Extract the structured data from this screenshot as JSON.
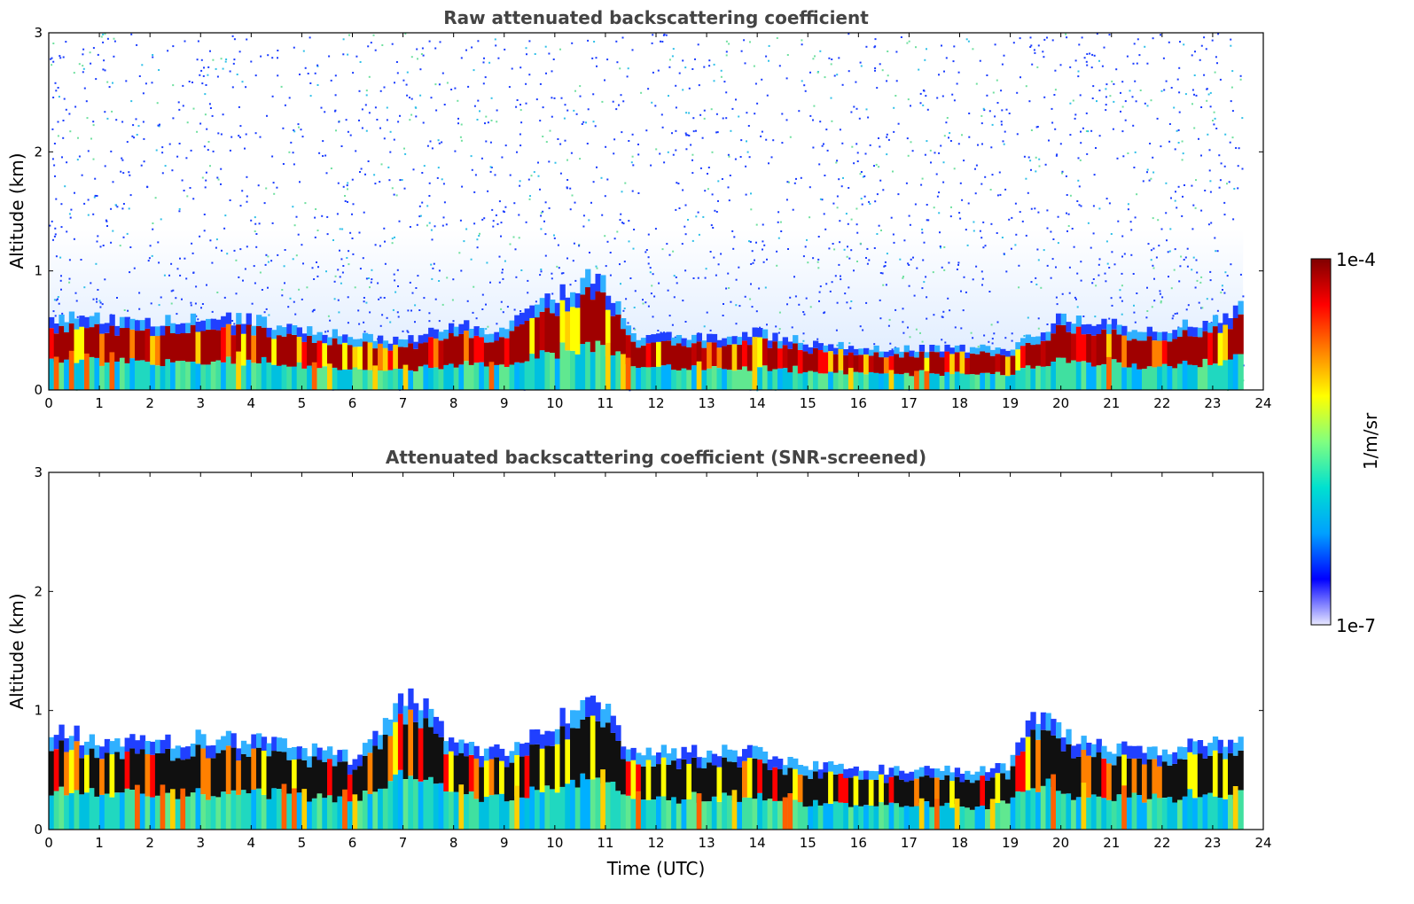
{
  "chart_data": [
    {
      "type": "heatmap",
      "title": "Raw attenuated backscattering coefficient",
      "xlabel": "",
      "ylabel": "Altitude (km)",
      "xlim": [
        0,
        24
      ],
      "ylim": [
        0,
        3
      ],
      "x_ticks": [
        "0",
        "1",
        "2",
        "3",
        "4",
        "5",
        "6",
        "7",
        "8",
        "9",
        "10",
        "11",
        "12",
        "13",
        "14",
        "15",
        "16",
        "17",
        "18",
        "19",
        "20",
        "21",
        "22",
        "23",
        "24"
      ],
      "y_ticks": [
        "0",
        "1",
        "2",
        "3"
      ],
      "data_end_time": 23.6,
      "layer_top_km": [
        [
          0,
          0.62
        ],
        [
          1,
          0.6
        ],
        [
          2,
          0.58
        ],
        [
          3,
          0.6
        ],
        [
          4,
          0.6
        ],
        [
          5,
          0.5
        ],
        [
          6,
          0.45
        ],
        [
          7,
          0.4
        ],
        [
          8,
          0.55
        ],
        [
          9,
          0.5
        ],
        [
          10,
          0.8
        ],
        [
          10.9,
          1.0
        ],
        [
          11.5,
          0.45
        ],
        [
          12,
          0.45
        ],
        [
          13,
          0.45
        ],
        [
          14,
          0.48
        ],
        [
          15,
          0.4
        ],
        [
          16,
          0.35
        ],
        [
          17,
          0.35
        ],
        [
          18,
          0.35
        ],
        [
          19,
          0.35
        ],
        [
          20,
          0.6
        ],
        [
          21,
          0.55
        ],
        [
          22,
          0.5
        ],
        [
          23,
          0.6
        ],
        [
          23.6,
          0.7
        ]
      ],
      "noise": "high",
      "screened": false
    },
    {
      "type": "heatmap",
      "title": "Attenuated backscattering coefficient (SNR-screened)",
      "xlabel": "Time (UTC)",
      "ylabel": "Altitude (km)",
      "xlim": [
        0,
        24
      ],
      "ylim": [
        0,
        3
      ],
      "x_ticks": [
        "0",
        "1",
        "2",
        "3",
        "4",
        "5",
        "6",
        "7",
        "8",
        "9",
        "10",
        "11",
        "12",
        "13",
        "14",
        "15",
        "16",
        "17",
        "18",
        "19",
        "20",
        "21",
        "22",
        "23",
        "24"
      ],
      "y_ticks": [
        "0",
        "1",
        "2",
        "3"
      ],
      "data_end_time": 23.6,
      "layer_top_km": [
        [
          0,
          0.85
        ],
        [
          1,
          0.75
        ],
        [
          2,
          0.72
        ],
        [
          3,
          0.78
        ],
        [
          4,
          0.75
        ],
        [
          5,
          0.68
        ],
        [
          6,
          0.6
        ],
        [
          6.6,
          0.9
        ],
        [
          7,
          1.1
        ],
        [
          7.4,
          1.1
        ],
        [
          8,
          0.7
        ],
        [
          9,
          0.65
        ],
        [
          10,
          0.9
        ],
        [
          10.9,
          1.1
        ],
        [
          11.5,
          0.65
        ],
        [
          12,
          0.65
        ],
        [
          13,
          0.65
        ],
        [
          14,
          0.65
        ],
        [
          15,
          0.55
        ],
        [
          16,
          0.5
        ],
        [
          17,
          0.5
        ],
        [
          18,
          0.5
        ],
        [
          19,
          0.55
        ],
        [
          19.5,
          1.0
        ],
        [
          20,
          0.8
        ],
        [
          21,
          0.7
        ],
        [
          22,
          0.65
        ],
        [
          23,
          0.75
        ],
        [
          23.6,
          0.8
        ]
      ],
      "noise": "low",
      "screened": true
    }
  ],
  "colorbar": {
    "label": "1/m/sr",
    "max_label": "1e-4",
    "min_label": "1e-7",
    "colormap": "jet",
    "stops": [
      "#e8e8ff",
      "#0000ff",
      "#00a0ff",
      "#00e0d0",
      "#80ff80",
      "#ffff00",
      "#ff8000",
      "#ff0000",
      "#800000"
    ]
  }
}
